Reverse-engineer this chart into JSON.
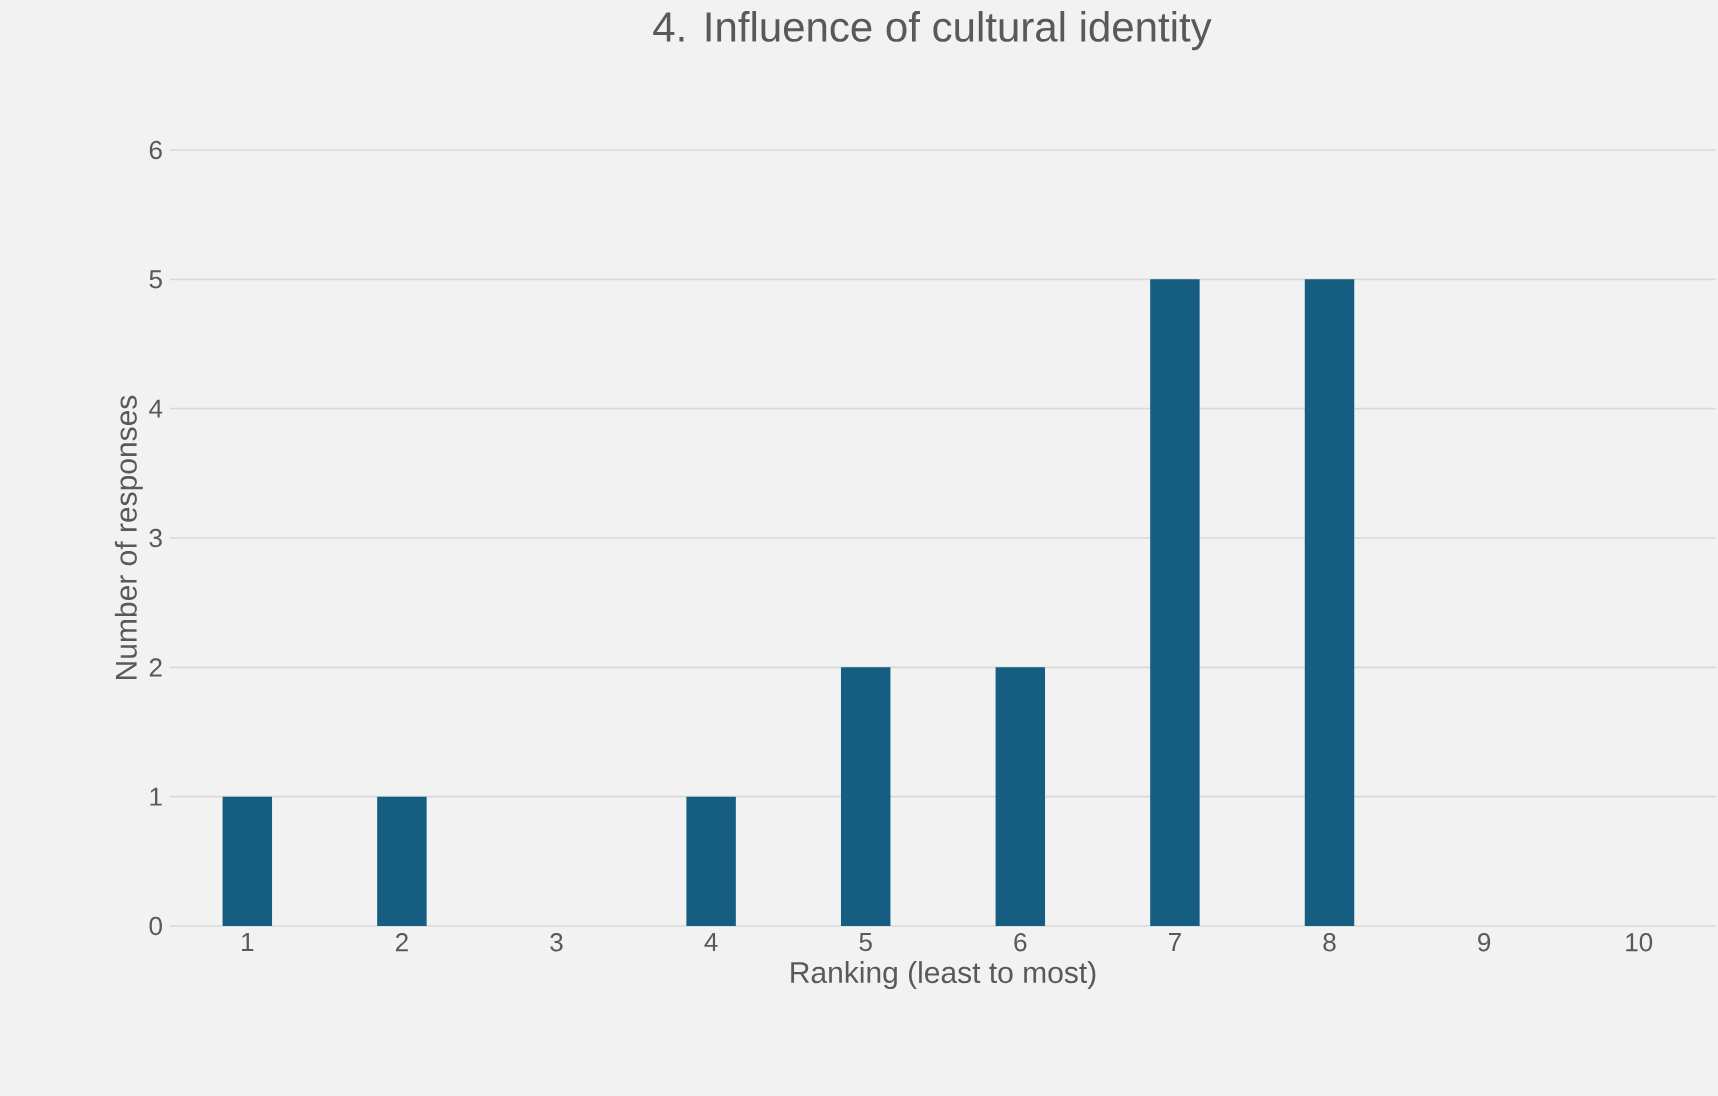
{
  "chart_data": {
    "type": "bar",
    "title": "4. Influence of cultural identity",
    "xlabel": "Ranking (least to most)",
    "ylabel": "Number of responses",
    "categories": [
      "1",
      "2",
      "3",
      "4",
      "5",
      "6",
      "7",
      "8",
      "9",
      "10"
    ],
    "values": [
      1,
      1,
      0,
      1,
      2,
      2,
      5,
      5,
      0,
      0
    ],
    "color": "#155e82",
    "ylim": [
      0,
      6
    ],
    "yticks": [
      0,
      1,
      2,
      3,
      4,
      5,
      6
    ],
    "grid": "y"
  }
}
